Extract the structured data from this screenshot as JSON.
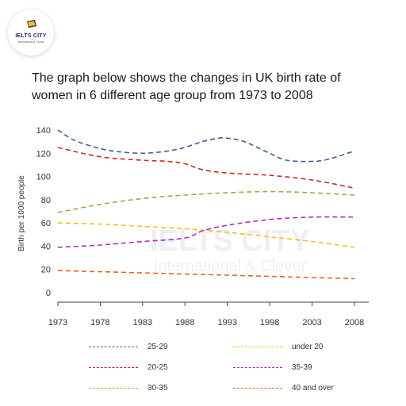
{
  "logo": {
    "name": "IELTS CITY",
    "tagline": "International & Clever"
  },
  "title_lines": [
    "The graph below shows the changes in UK birth rate of",
    "women in 6 different age group from 1973 to 2008"
  ],
  "watermark": {
    "name": "IELTS CITY",
    "tagline": "International & Clever"
  },
  "chart_data": {
    "type": "line",
    "title": "The graph below shows the changes in UK birth rate of women in 6 different age group from 1973 to 2008",
    "xlabel": "",
    "ylabel": "Birth per 1000 people",
    "x": [
      1973,
      1978,
      1983,
      1988,
      1993,
      1998,
      2003,
      2008
    ],
    "xlim": [
      1973,
      2008
    ],
    "ylim": [
      0,
      140
    ],
    "yticks": [
      0,
      20,
      40,
      60,
      80,
      100,
      120,
      140
    ],
    "grid": false,
    "line_style": "dashed",
    "legend_position": "bottom",
    "series": [
      {
        "name": "25-29",
        "color": "#3d5f8f",
        "points": [
          [
            1973,
            140
          ],
          [
            1975,
            131
          ],
          [
            1978,
            124
          ],
          [
            1980,
            121.5
          ],
          [
            1983,
            120
          ],
          [
            1986,
            122
          ],
          [
            1988,
            125
          ],
          [
            1990,
            130
          ],
          [
            1992,
            133
          ],
          [
            1993,
            133
          ],
          [
            1995,
            130
          ],
          [
            1998,
            120
          ],
          [
            2000,
            114
          ],
          [
            2003,
            113
          ],
          [
            2005,
            115
          ],
          [
            2008,
            122
          ]
        ]
      },
      {
        "name": "20-25",
        "color": "#c8282a",
        "points": [
          [
            1973,
            125
          ],
          [
            1978,
            117
          ],
          [
            1983,
            114
          ],
          [
            1986,
            113
          ],
          [
            1988,
            111
          ],
          [
            1990,
            106
          ],
          [
            1993,
            103
          ],
          [
            1998,
            101
          ],
          [
            2003,
            97
          ],
          [
            2008,
            90
          ]
        ]
      },
      {
        "name": "30-35",
        "color": "#9aab52",
        "points": [
          [
            1973,
            69
          ],
          [
            1978,
            76
          ],
          [
            1983,
            81
          ],
          [
            1988,
            84
          ],
          [
            1993,
            86
          ],
          [
            1998,
            87
          ],
          [
            2003,
            86
          ],
          [
            2008,
            84
          ]
        ]
      },
      {
        "name": "under 20",
        "color": "#f2c21b",
        "points": [
          [
            1973,
            60
          ],
          [
            1978,
            59
          ],
          [
            1983,
            57
          ],
          [
            1988,
            55
          ],
          [
            1993,
            52
          ],
          [
            1998,
            48
          ],
          [
            2003,
            44
          ],
          [
            2008,
            39
          ]
        ]
      },
      {
        "name": "35-39",
        "color": "#b42ac9",
        "points": [
          [
            1973,
            39
          ],
          [
            1978,
            41
          ],
          [
            1983,
            44
          ],
          [
            1988,
            47
          ],
          [
            1990,
            53
          ],
          [
            1993,
            58
          ],
          [
            1998,
            63
          ],
          [
            2003,
            65
          ],
          [
            2008,
            65
          ]
        ]
      },
      {
        "name": "40 and over",
        "color": "#e8661f",
        "points": [
          [
            1973,
            19
          ],
          [
            1978,
            18
          ],
          [
            1983,
            17
          ],
          [
            1988,
            16
          ],
          [
            1993,
            15
          ],
          [
            1998,
            14
          ],
          [
            2003,
            13
          ],
          [
            2008,
            12
          ]
        ]
      }
    ]
  }
}
